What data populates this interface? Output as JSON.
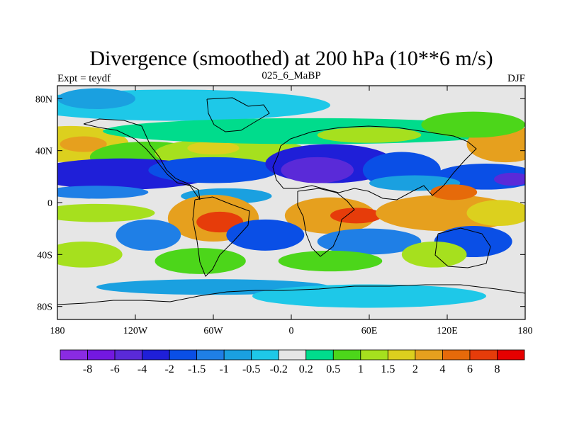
{
  "chart_data": {
    "type": "heatmap",
    "title": "Divergence (smoothed) at 200 hPa (10**6 m/s)",
    "left_subtitle": "Expt = teydf",
    "center_subtitle": "025_6_MaBP",
    "right_subtitle": "DJF",
    "xlim": [
      -180,
      180
    ],
    "ylim": [
      -90,
      90
    ],
    "x_ticks": [
      {
        "value": -180,
        "label": "180"
      },
      {
        "value": -120,
        "label": "120W"
      },
      {
        "value": -60,
        "label": "60W"
      },
      {
        "value": 0,
        "label": "0"
      },
      {
        "value": 60,
        "label": "60E"
      },
      {
        "value": 120,
        "label": "120E"
      },
      {
        "value": 180,
        "label": "180"
      }
    ],
    "y_ticks": [
      {
        "value": 80,
        "label": "80N"
      },
      {
        "value": 40,
        "label": "40N"
      },
      {
        "value": 0,
        "label": "0"
      },
      {
        "value": -40,
        "label": "40S"
      },
      {
        "value": -80,
        "label": "80S"
      }
    ],
    "colorbar": {
      "colors": [
        "#8a2be2",
        "#7318e0",
        "#5a2ad8",
        "#1f1fd8",
        "#0a4fe6",
        "#1f7fe6",
        "#1aa0e0",
        "#1ec8e8",
        "#e6e6e6",
        "#00dc8c",
        "#4cd61a",
        "#a6e01e",
        "#dcd01e",
        "#e6a01e",
        "#e66a0a",
        "#e63c0a",
        "#e60000"
      ],
      "labels": [
        "-8",
        "-6",
        "-4",
        "-2",
        "-1.5",
        "-1",
        "-0.5",
        "-0.2",
        "0.2",
        "0.5",
        "1",
        "1.5",
        "2",
        "4",
        "6",
        "8"
      ]
    },
    "features": [
      {
        "lon": -90,
        "lat": 75,
        "rx": 120,
        "ry": 12,
        "c": 7
      },
      {
        "lon": -150,
        "lat": 80,
        "rx": 30,
        "ry": 8,
        "c": 6
      },
      {
        "lon": -170,
        "lat": 45,
        "rx": 45,
        "ry": 14,
        "c": 12
      },
      {
        "lon": -160,
        "lat": 45,
        "rx": 18,
        "ry": 6,
        "c": 13
      },
      {
        "lon": -110,
        "lat": 35,
        "rx": 45,
        "ry": 12,
        "c": 10
      },
      {
        "lon": -45,
        "lat": 38,
        "rx": 60,
        "ry": 12,
        "c": 11
      },
      {
        "lon": -60,
        "lat": 42,
        "rx": 20,
        "ry": 5,
        "c": 12
      },
      {
        "lon": 15,
        "lat": 55,
        "rx": 160,
        "ry": 10,
        "c": 9
      },
      {
        "lon": 60,
        "lat": 52,
        "rx": 40,
        "ry": 6,
        "c": 11
      },
      {
        "lon": 165,
        "lat": 45,
        "rx": 30,
        "ry": 14,
        "c": 13
      },
      {
        "lon": 140,
        "lat": 60,
        "rx": 40,
        "ry": 10,
        "c": 10
      },
      {
        "lon": -130,
        "lat": 22,
        "rx": 70,
        "ry": 12,
        "c": 3
      },
      {
        "lon": -60,
        "lat": 25,
        "rx": 50,
        "ry": 10,
        "c": 4
      },
      {
        "lon": 30,
        "lat": 30,
        "rx": 50,
        "ry": 15,
        "c": 3
      },
      {
        "lon": 20,
        "lat": 25,
        "rx": 28,
        "ry": 10,
        "c": 2
      },
      {
        "lon": 85,
        "lat": 25,
        "rx": 30,
        "ry": 14,
        "c": 4
      },
      {
        "lon": 150,
        "lat": 20,
        "rx": 40,
        "ry": 10,
        "c": 4
      },
      {
        "lon": 170,
        "lat": 18,
        "rx": 14,
        "ry": 5,
        "c": 2
      },
      {
        "lon": -150,
        "lat": 8,
        "rx": 40,
        "ry": 5,
        "c": 5
      },
      {
        "lon": -50,
        "lat": 5,
        "rx": 35,
        "ry": 6,
        "c": 6
      },
      {
        "lon": 95,
        "lat": 15,
        "rx": 35,
        "ry": 6,
        "c": 6
      },
      {
        "lon": -150,
        "lat": -8,
        "rx": 45,
        "ry": 7,
        "c": 11
      },
      {
        "lon": -60,
        "lat": -12,
        "rx": 35,
        "ry": 18,
        "c": 13
      },
      {
        "lon": -55,
        "lat": -15,
        "rx": 18,
        "ry": 8,
        "c": 15
      },
      {
        "lon": 30,
        "lat": -10,
        "rx": 35,
        "ry": 14,
        "c": 13
      },
      {
        "lon": 50,
        "lat": -10,
        "rx": 20,
        "ry": 6,
        "c": 15
      },
      {
        "lon": 120,
        "lat": -8,
        "rx": 55,
        "ry": 14,
        "c": 13
      },
      {
        "lon": 125,
        "lat": 8,
        "rx": 18,
        "ry": 6,
        "c": 14
      },
      {
        "lon": 160,
        "lat": -8,
        "rx": 25,
        "ry": 10,
        "c": 12
      },
      {
        "lon": -110,
        "lat": -25,
        "rx": 25,
        "ry": 12,
        "c": 5
      },
      {
        "lon": -20,
        "lat": -25,
        "rx": 30,
        "ry": 12,
        "c": 4
      },
      {
        "lon": 60,
        "lat": -30,
        "rx": 40,
        "ry": 10,
        "c": 5
      },
      {
        "lon": 140,
        "lat": -30,
        "rx": 30,
        "ry": 12,
        "c": 4
      },
      {
        "lon": -160,
        "lat": -40,
        "rx": 30,
        "ry": 10,
        "c": 11
      },
      {
        "lon": -70,
        "lat": -45,
        "rx": 35,
        "ry": 10,
        "c": 10
      },
      {
        "lon": 30,
        "lat": -45,
        "rx": 40,
        "ry": 8,
        "c": 10
      },
      {
        "lon": 110,
        "lat": -40,
        "rx": 25,
        "ry": 10,
        "c": 11
      },
      {
        "lon": -60,
        "lat": -65,
        "rx": 90,
        "ry": 6,
        "c": 6
      },
      {
        "lon": 60,
        "lat": -72,
        "rx": 90,
        "ry": 9,
        "c": 7
      }
    ]
  }
}
